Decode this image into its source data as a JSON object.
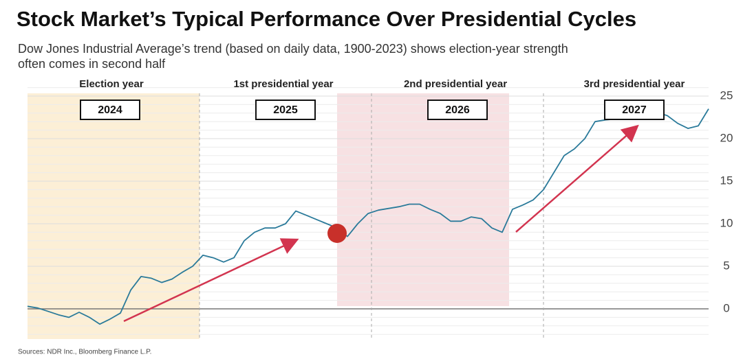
{
  "chart_data": {
    "type": "line",
    "title": "Stock Market’s Typical Performance Over Presidential Cycles",
    "subtitle_lines": [
      "Dow Jones Industrial Average’s trend (based on daily data, 1900-2023) shows election-year strength",
      "often comes in second half"
    ],
    "period_labels": [
      "Election year",
      "1st presidential year",
      "2nd presidential year",
      "3rd presidential year"
    ],
    "year_labels": [
      "2024",
      "2025",
      "2026",
      "2027"
    ],
    "source": "Sources: NDR Inc., Bloomberg Finance L.P.",
    "color": "#2a7a9a",
    "values": [
      0.3,
      0.1,
      -0.3,
      -0.7,
      -1,
      -0.4,
      -1,
      -1.8,
      -1.2,
      -0.5,
      2.2,
      3.8,
      3.6,
      3.1,
      3.5,
      4.3,
      5,
      6.3,
      6,
      5.5,
      6,
      8,
      9,
      9.5,
      9.5,
      10,
      11.5,
      11,
      10.5,
      10,
      9.5,
      8.5,
      10,
      11.2,
      11.6,
      11.8,
      12,
      12.3,
      12.3,
      11.7,
      11.2,
      10.3,
      10.3,
      10.8,
      10.6,
      9.5,
      9,
      11.7,
      12.2,
      12.8,
      14,
      16,
      18,
      18.8,
      20,
      22,
      22.2,
      22.3,
      22.8,
      23.3,
      23.5,
      23.1,
      22.7,
      21.8,
      21.2,
      21.5,
      23.5
    ],
    "ylim": [
      -3.5,
      26
    ],
    "yticks": [
      0,
      5,
      10,
      15,
      20,
      25
    ],
    "grid": true
  }
}
